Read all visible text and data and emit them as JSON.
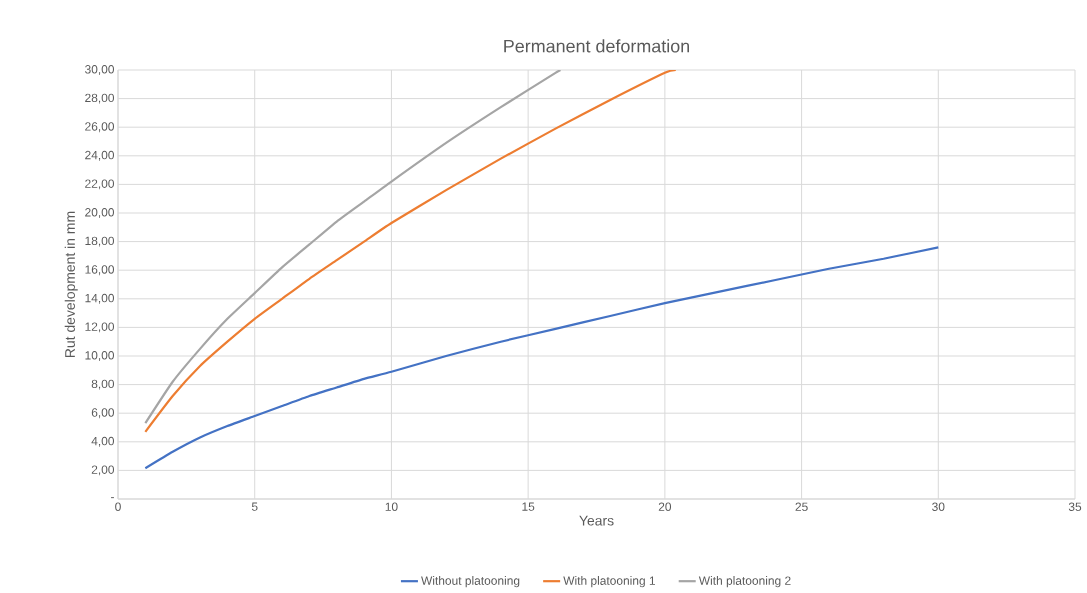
{
  "chart_data": {
    "type": "line",
    "title": "Permanent deformation",
    "xlabel": "Years",
    "ylabel": "Rut development in mm",
    "xlim": [
      0,
      35
    ],
    "xticks": [
      0,
      5,
      10,
      15,
      20,
      25,
      30,
      35
    ],
    "ylim": [
      0,
      30
    ],
    "yticks": [
      {
        "value": 0,
        "label": "-"
      },
      {
        "value": 2,
        "label": "2,00"
      },
      {
        "value": 4,
        "label": "4,00"
      },
      {
        "value": 6,
        "label": "6,00"
      },
      {
        "value": 8,
        "label": "8,00"
      },
      {
        "value": 10,
        "label": "10,00"
      },
      {
        "value": 12,
        "label": "12,00"
      },
      {
        "value": 14,
        "label": "14,00"
      },
      {
        "value": 16,
        "label": "16,00"
      },
      {
        "value": 18,
        "label": "18,00"
      },
      {
        "value": 20,
        "label": "20,00"
      },
      {
        "value": 22,
        "label": "22,00"
      },
      {
        "value": 24,
        "label": "24,00"
      },
      {
        "value": 26,
        "label": "26,00"
      },
      {
        "value": 28,
        "label": "28,00"
      },
      {
        "value": 30,
        "label": "30,00"
      }
    ],
    "grid": true,
    "legend": "bottom",
    "marker": "none",
    "line_style": "solid",
    "series": [
      {
        "name": "Without platooning",
        "color": "#4472c4",
        "x": [
          1,
          2,
          3,
          4,
          5,
          6,
          7,
          8,
          9,
          10,
          12,
          14,
          16,
          18,
          20,
          22,
          24,
          26,
          28,
          30
        ],
        "values": [
          2.15,
          3.3,
          4.3,
          5.1,
          5.8,
          6.5,
          7.2,
          7.8,
          8.4,
          8.9,
          10.0,
          11.0,
          11.9,
          12.8,
          13.7,
          14.5,
          15.3,
          16.1,
          16.8,
          17.6
        ]
      },
      {
        "name": "With platooning 1",
        "color": "#ed7d31",
        "x": [
          1,
          2,
          3,
          4,
          5,
          6,
          7,
          8,
          9,
          10,
          12,
          14,
          16,
          18,
          20,
          20.4
        ],
        "values": [
          4.7,
          7.2,
          9.3,
          11.0,
          12.6,
          14.0,
          15.4,
          16.7,
          18.0,
          19.3,
          21.6,
          23.8,
          25.9,
          27.9,
          29.8,
          30
        ]
      },
      {
        "name": "With platooning 2",
        "color": "#a5a5a5",
        "x": [
          1,
          2,
          3,
          4,
          5,
          6,
          7,
          8,
          9,
          10,
          12,
          14,
          16,
          16.2
        ],
        "values": [
          5.3,
          8.2,
          10.5,
          12.6,
          14.4,
          16.2,
          17.8,
          19.4,
          20.8,
          22.2,
          24.9,
          27.4,
          29.8,
          30
        ]
      }
    ]
  }
}
